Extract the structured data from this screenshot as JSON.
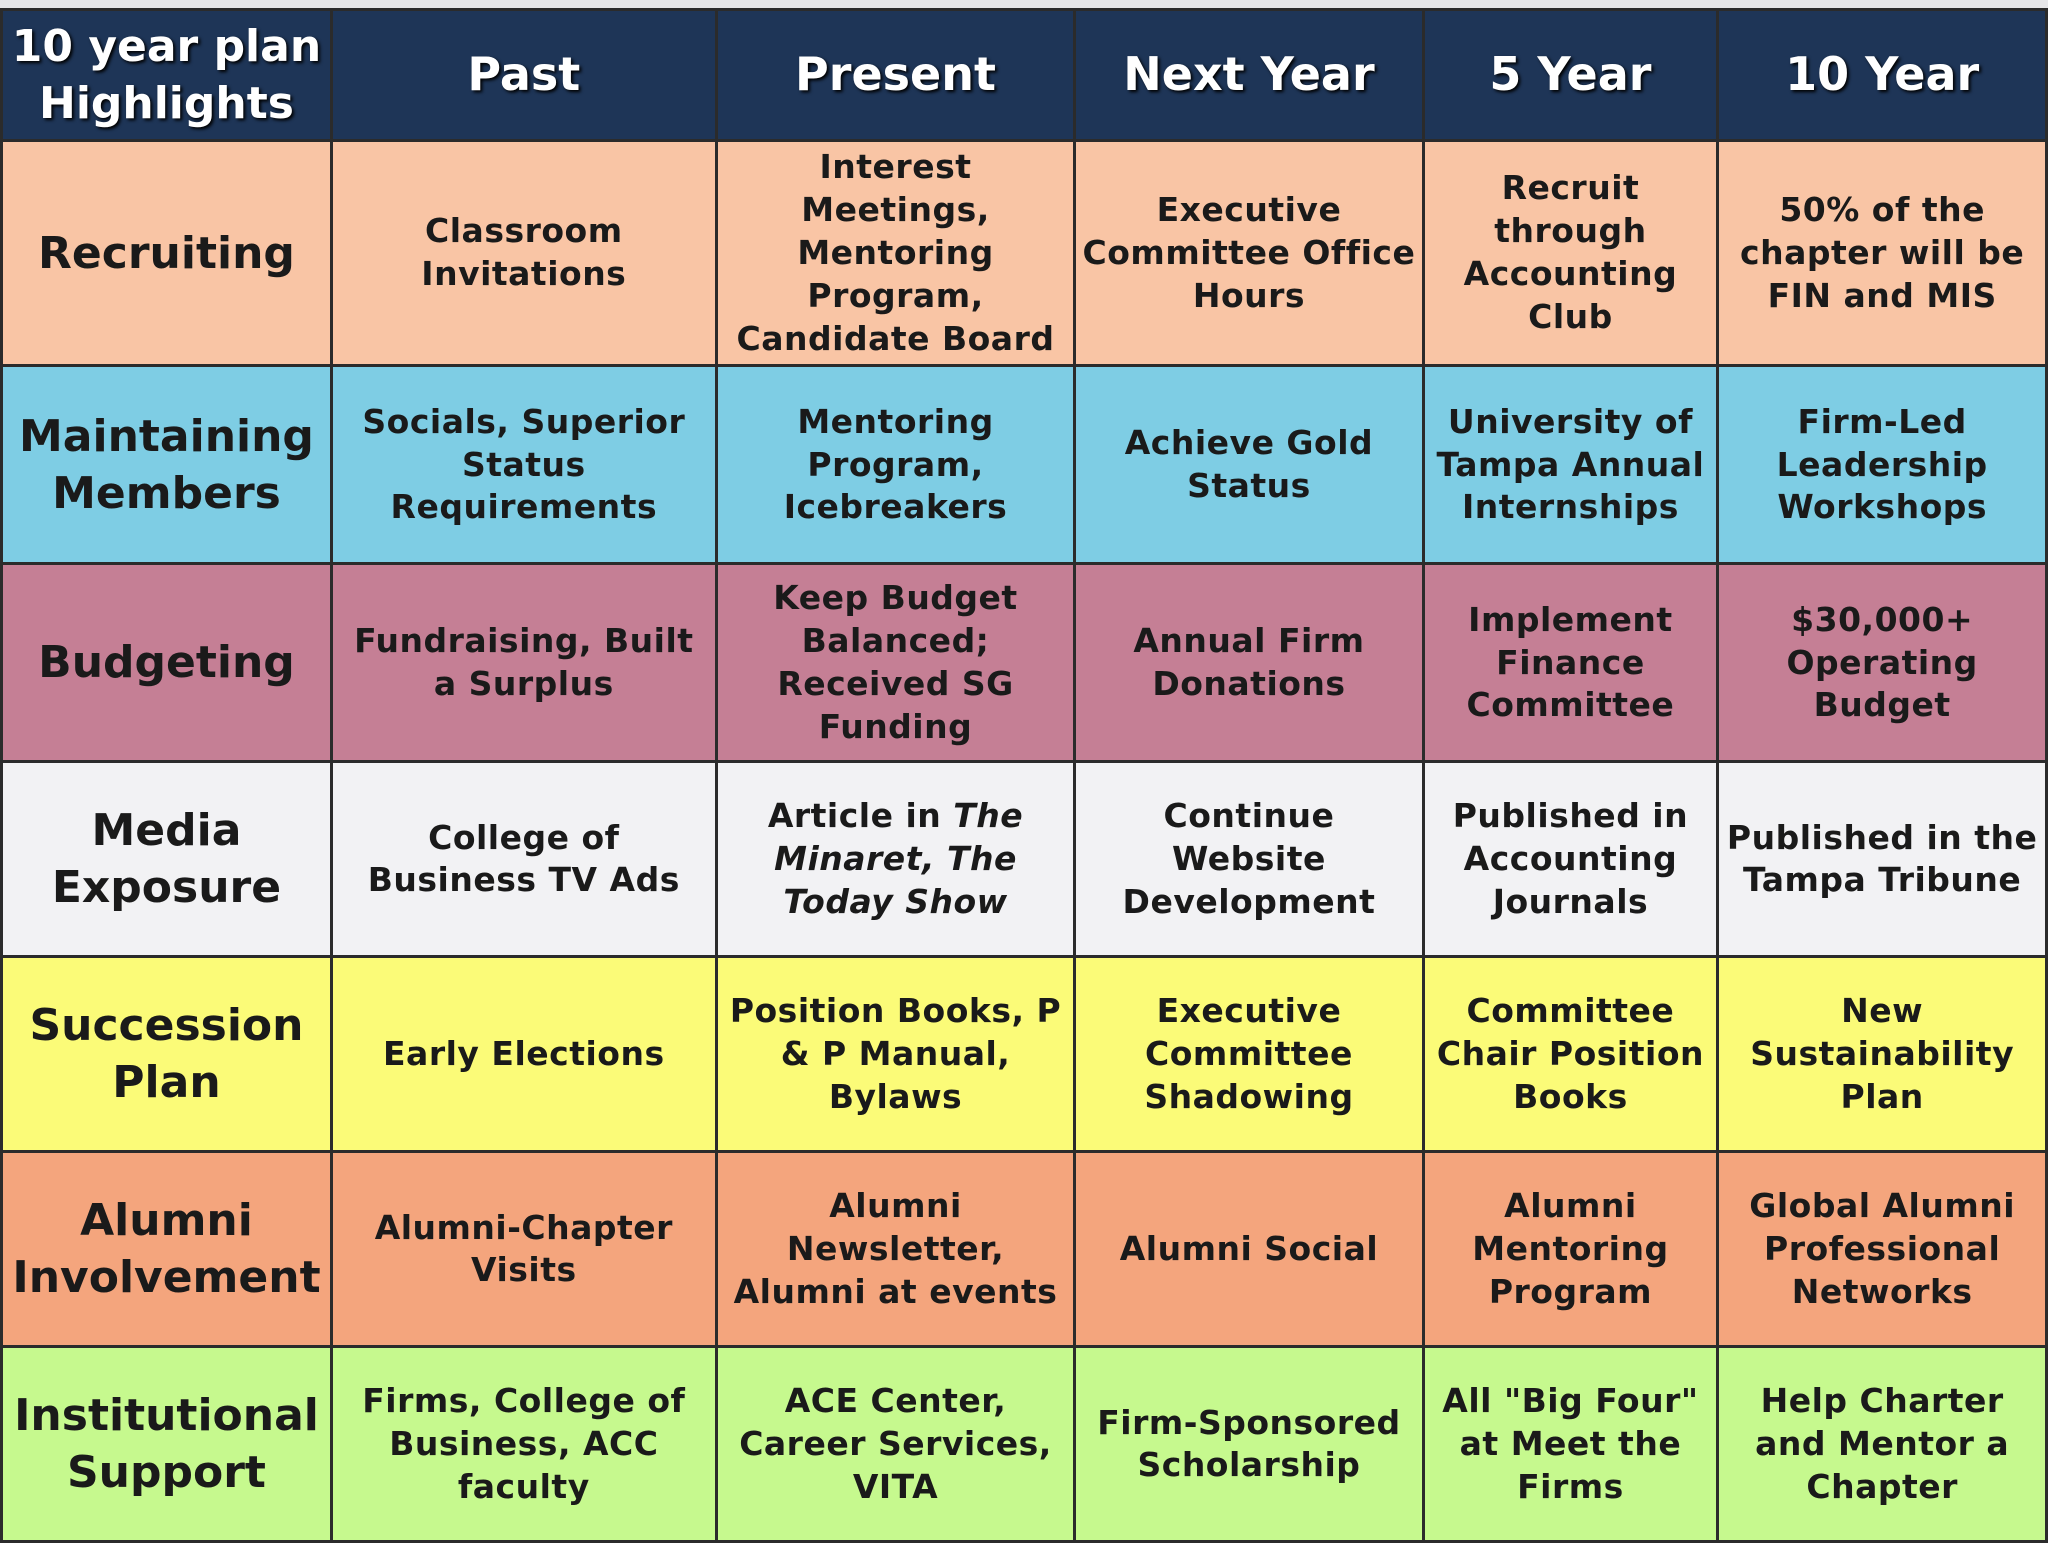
{
  "header": {
    "corner_line1": "10 year plan",
    "corner_line2": "Highlights",
    "columns": [
      "Past",
      "Present",
      "Next Year",
      "5 Year",
      "10 Year"
    ]
  },
  "colors": {
    "header_bg": "#1e3557",
    "header_text": "#ffffff",
    "recruiting": "#f9c5a5",
    "maintaining_members": "#7ecde4",
    "budgeting": "#c57f95",
    "media_exposure": "#f2f2f4",
    "succession_plan": "#fbfb78",
    "alumni_involvement": "#f4a57d",
    "institutional_support": "#c6f98e"
  },
  "rows": [
    {
      "label": "Recruiting",
      "cells": [
        "Classroom Invitations",
        "Interest Meetings, Mentoring Program, Candidate Board",
        "Executive Committee Office Hours",
        "Recruit through Accounting Club",
        "50% of the chapter will be FIN and MIS"
      ]
    },
    {
      "label": "Maintaining Members",
      "cells": [
        "Socials, Superior Status Requirements",
        "Mentoring Program, Icebreakers",
        "Achieve Gold Status",
        "University of Tampa Annual Internships",
        "Firm-Led Leadership Workshops"
      ]
    },
    {
      "label": "Budgeting",
      "cells": [
        "Fundraising, Built a Surplus",
        "Keep Budget Balanced; Received SG Funding",
        "Annual Firm Donations",
        "Implement Finance Committee",
        "$30,000+ Operating Budget"
      ]
    },
    {
      "label": "Media Exposure",
      "cells": [
        "College of Business TV Ads",
        {
          "prefix": "Article in ",
          "italic1": "The Minaret",
          "sep": ", ",
          "italic2": "The Today Show"
        },
        "Continue Website Development",
        "Published in Accounting Journals",
        "Published in the Tampa Tribune"
      ]
    },
    {
      "label": "Succession Plan",
      "cells": [
        "Early Elections",
        "Position Books, P & P Manual, Bylaws",
        "Executive Committee Shadowing",
        "Committee Chair Position Books",
        "New Sustainability Plan"
      ]
    },
    {
      "label": "Alumni Involvement",
      "cells": [
        "Alumni-Chapter Visits",
        "Alumni Newsletter, Alumni at events",
        "Alumni Social",
        "Alumni Mentoring Program",
        "Global Alumni Professional Networks"
      ]
    },
    {
      "label": "Institutional Support",
      "cells": [
        "Firms, College of Business, ACC faculty",
        "ACE Center, Career Services, VITA",
        "Firm-Sponsored Scholarship",
        "All \"Big Four\" at Meet the Firms",
        "Help Charter and Mentor a Chapter"
      ]
    }
  ]
}
